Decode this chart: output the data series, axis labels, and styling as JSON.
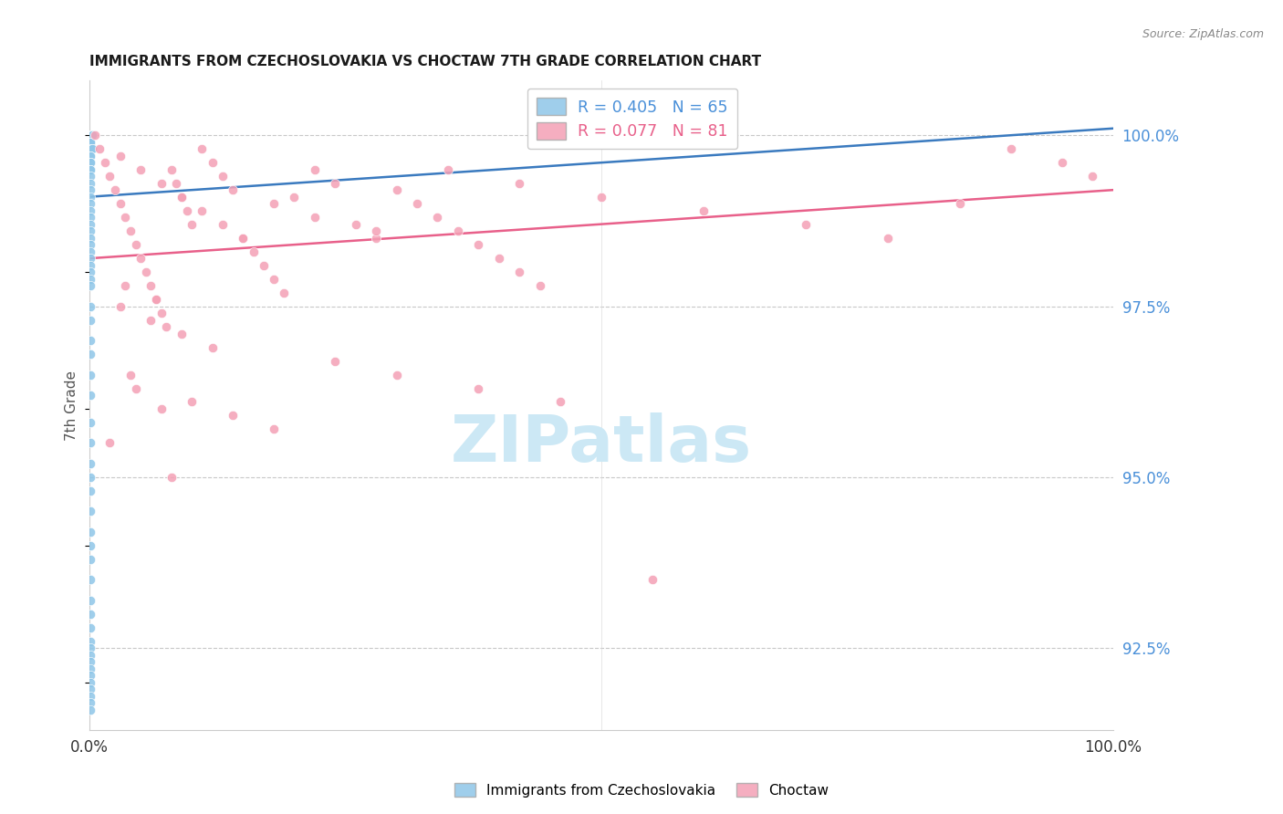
{
  "title": "IMMIGRANTS FROM CZECHOSLOVAKIA VS CHOCTAW 7TH GRADE CORRELATION CHART",
  "source": "Source: ZipAtlas.com",
  "ylabel": "7th Grade",
  "ytick_labels": [
    "92.5%",
    "95.0%",
    "97.5%",
    "100.0%"
  ],
  "ytick_values": [
    92.5,
    95.0,
    97.5,
    100.0
  ],
  "xlim": [
    0.0,
    100.0
  ],
  "ylim": [
    91.3,
    100.8
  ],
  "color_blue": "#8ec6e8",
  "color_pink": "#f4a0b5",
  "color_blue_line": "#3a7abf",
  "color_pink_line": "#e8608a",
  "color_title": "#1a1a1a",
  "color_ytick": "#4a90d9",
  "color_source": "#888888",
  "watermark_text": "ZIPatlas",
  "watermark_color": "#cce8f5",
  "legend_line1": "R = 0.405   N = 65",
  "legend_line2": "R = 0.077   N = 81",
  "legend_color1": "#4a90d9",
  "legend_color2": "#e8608a",
  "bottom_legend1": "Immigrants from Czechoslovakia",
  "bottom_legend2": "Choctaw",
  "marker_size": 55,
  "blue_x": [
    0.05,
    0.1,
    0.15,
    0.2,
    0.25,
    0.3,
    0.05,
    0.08,
    0.12,
    0.18,
    0.22,
    0.28,
    0.05,
    0.07,
    0.09,
    0.11,
    0.05,
    0.06,
    0.08,
    0.1,
    0.05,
    0.06,
    0.07,
    0.05,
    0.06,
    0.05,
    0.06,
    0.05,
    0.05,
    0.05,
    0.05,
    0.05,
    0.05,
    0.05,
    0.05,
    0.05,
    0.05,
    0.05,
    0.05,
    0.05,
    0.05,
    0.05,
    0.05,
    0.05,
    0.05,
    0.05,
    0.05,
    0.05,
    0.05,
    0.05,
    0.05,
    0.05,
    0.05,
    0.05,
    0.05,
    0.05,
    0.05,
    0.05,
    0.05,
    0.05,
    0.05,
    0.05,
    0.05,
    0.05,
    0.05
  ],
  "blue_y": [
    100.0,
    100.0,
    100.0,
    100.0,
    100.0,
    100.0,
    99.9,
    99.9,
    99.9,
    99.8,
    99.8,
    99.8,
    99.7,
    99.7,
    99.6,
    99.6,
    99.5,
    99.5,
    99.4,
    99.3,
    99.2,
    99.1,
    99.0,
    98.9,
    98.8,
    98.7,
    98.6,
    98.5,
    98.4,
    98.3,
    98.2,
    98.1,
    98.0,
    97.9,
    97.8,
    97.5,
    97.3,
    97.0,
    96.8,
    96.5,
    96.2,
    95.8,
    95.5,
    95.2,
    95.0,
    94.8,
    94.5,
    94.2,
    94.0,
    93.8,
    93.5,
    93.2,
    93.0,
    92.8,
    92.6,
    92.5,
    92.4,
    92.3,
    92.2,
    92.1,
    92.0,
    91.9,
    91.8,
    91.7,
    91.6
  ],
  "pink_x": [
    0.5,
    1.0,
    1.5,
    2.0,
    2.5,
    3.0,
    3.5,
    4.0,
    4.5,
    5.0,
    5.5,
    6.0,
    6.5,
    7.0,
    7.5,
    8.0,
    8.5,
    9.0,
    9.5,
    10.0,
    11.0,
    12.0,
    13.0,
    14.0,
    15.0,
    16.0,
    17.0,
    18.0,
    19.0,
    20.0,
    22.0,
    24.0,
    26.0,
    28.0,
    30.0,
    32.0,
    34.0,
    36.0,
    38.0,
    40.0,
    42.0,
    44.0,
    3.0,
    5.0,
    7.0,
    9.0,
    11.0,
    13.0,
    15.0,
    18.0,
    22.0,
    28.0,
    35.0,
    42.0,
    50.0,
    60.0,
    70.0,
    78.0,
    85.0,
    90.0,
    95.0,
    98.0,
    3.0,
    6.0,
    9.0,
    12.0,
    4.0,
    7.0,
    2.0,
    8.0,
    3.5,
    6.5,
    4.5,
    10.0,
    14.0,
    18.0,
    24.0,
    30.0,
    38.0,
    46.0,
    55.0
  ],
  "pink_y": [
    100.0,
    99.8,
    99.6,
    99.4,
    99.2,
    99.0,
    98.8,
    98.6,
    98.4,
    98.2,
    98.0,
    97.8,
    97.6,
    97.4,
    97.2,
    99.5,
    99.3,
    99.1,
    98.9,
    98.7,
    99.8,
    99.6,
    99.4,
    99.2,
    98.5,
    98.3,
    98.1,
    97.9,
    97.7,
    99.1,
    99.5,
    99.3,
    98.7,
    98.5,
    99.2,
    99.0,
    98.8,
    98.6,
    98.4,
    98.2,
    98.0,
    97.8,
    99.7,
    99.5,
    99.3,
    99.1,
    98.9,
    98.7,
    98.5,
    99.0,
    98.8,
    98.6,
    99.5,
    99.3,
    99.1,
    98.9,
    98.7,
    98.5,
    99.0,
    99.8,
    99.6,
    99.4,
    97.5,
    97.3,
    97.1,
    96.9,
    96.5,
    96.0,
    95.5,
    95.0,
    97.8,
    97.6,
    96.3,
    96.1,
    95.9,
    95.7,
    96.7,
    96.5,
    96.3,
    96.1,
    93.5
  ]
}
